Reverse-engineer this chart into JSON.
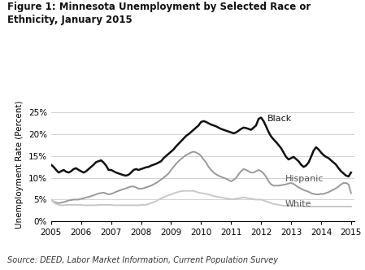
{
  "title_line1": "Figure 1: Minnesota Unemployment by Selected Race or",
  "title_line2": "Ethnicity, January 2015",
  "ylabel": "Unemployment Rate (Percent)",
  "source": "Source: DEED, Labor Market Information, Current Population Survey",
  "ylim": [
    0,
    0.26
  ],
  "yticks": [
    0.0,
    0.05,
    0.1,
    0.15,
    0.2,
    0.25
  ],
  "ytick_labels": [
    "0%",
    "5%",
    "10%",
    "15%",
    "20%",
    "25%"
  ],
  "xlim": [
    2005.0,
    2015.1
  ],
  "xticks": [
    2005,
    2006,
    2007,
    2008,
    2009,
    2010,
    2011,
    2012,
    2013,
    2014,
    2015
  ],
  "black_color": "#111111",
  "hispanic_color": "#999999",
  "white_color": "#c8c8c8",
  "background_color": "#ffffff",
  "grid_color": "#cccccc",
  "black_data": {
    "x": [
      2005.0,
      2005.083,
      2005.167,
      2005.25,
      2005.333,
      2005.417,
      2005.5,
      2005.583,
      2005.667,
      2005.75,
      2005.833,
      2005.917,
      2006.0,
      2006.083,
      2006.167,
      2006.25,
      2006.333,
      2006.417,
      2006.5,
      2006.583,
      2006.667,
      2006.75,
      2006.833,
      2006.917,
      2007.0,
      2007.083,
      2007.167,
      2007.25,
      2007.333,
      2007.417,
      2007.5,
      2007.583,
      2007.667,
      2007.75,
      2007.833,
      2007.917,
      2008.0,
      2008.083,
      2008.167,
      2008.25,
      2008.333,
      2008.417,
      2008.5,
      2008.583,
      2008.667,
      2008.75,
      2008.833,
      2008.917,
      2009.0,
      2009.083,
      2009.167,
      2009.25,
      2009.333,
      2009.417,
      2009.5,
      2009.583,
      2009.667,
      2009.75,
      2009.833,
      2009.917,
      2010.0,
      2010.083,
      2010.167,
      2010.25,
      2010.333,
      2010.417,
      2010.5,
      2010.583,
      2010.667,
      2010.75,
      2010.833,
      2010.917,
      2011.0,
      2011.083,
      2011.167,
      2011.25,
      2011.333,
      2011.417,
      2011.5,
      2011.583,
      2011.667,
      2011.75,
      2011.833,
      2011.917,
      2012.0,
      2012.083,
      2012.167,
      2012.25,
      2012.333,
      2012.417,
      2012.5,
      2012.583,
      2012.667,
      2012.75,
      2012.833,
      2012.917,
      2013.0,
      2013.083,
      2013.167,
      2013.25,
      2013.333,
      2013.417,
      2013.5,
      2013.583,
      2013.667,
      2013.75,
      2013.833,
      2013.917,
      2014.0,
      2014.083,
      2014.167,
      2014.25,
      2014.333,
      2014.417,
      2014.5,
      2014.583,
      2014.667,
      2014.75,
      2014.833,
      2014.917,
      2015.0
    ],
    "y": [
      0.13,
      0.125,
      0.118,
      0.112,
      0.115,
      0.118,
      0.114,
      0.112,
      0.115,
      0.12,
      0.122,
      0.118,
      0.115,
      0.112,
      0.115,
      0.12,
      0.125,
      0.13,
      0.136,
      0.138,
      0.14,
      0.135,
      0.128,
      0.118,
      0.118,
      0.115,
      0.112,
      0.11,
      0.108,
      0.106,
      0.105,
      0.107,
      0.112,
      0.118,
      0.12,
      0.118,
      0.12,
      0.122,
      0.124,
      0.125,
      0.128,
      0.13,
      0.132,
      0.135,
      0.138,
      0.145,
      0.15,
      0.155,
      0.16,
      0.165,
      0.172,
      0.178,
      0.184,
      0.19,
      0.196,
      0.2,
      0.205,
      0.21,
      0.215,
      0.22,
      0.228,
      0.23,
      0.228,
      0.225,
      0.222,
      0.22,
      0.218,
      0.215,
      0.212,
      0.21,
      0.208,
      0.206,
      0.204,
      0.202,
      0.204,
      0.208,
      0.212,
      0.215,
      0.214,
      0.212,
      0.21,
      0.215,
      0.22,
      0.235,
      0.238,
      0.23,
      0.218,
      0.205,
      0.195,
      0.188,
      0.182,
      0.175,
      0.168,
      0.158,
      0.148,
      0.142,
      0.145,
      0.148,
      0.143,
      0.138,
      0.13,
      0.125,
      0.128,
      0.135,
      0.148,
      0.162,
      0.17,
      0.165,
      0.158,
      0.152,
      0.148,
      0.145,
      0.14,
      0.135,
      0.13,
      0.122,
      0.115,
      0.11,
      0.105,
      0.103,
      0.112
    ]
  },
  "hispanic_data": {
    "x": [
      2005.0,
      2005.083,
      2005.167,
      2005.25,
      2005.333,
      2005.417,
      2005.5,
      2005.583,
      2005.667,
      2005.75,
      2005.833,
      2005.917,
      2006.0,
      2006.083,
      2006.167,
      2006.25,
      2006.333,
      2006.417,
      2006.5,
      2006.583,
      2006.667,
      2006.75,
      2006.833,
      2006.917,
      2007.0,
      2007.083,
      2007.167,
      2007.25,
      2007.333,
      2007.417,
      2007.5,
      2007.583,
      2007.667,
      2007.75,
      2007.833,
      2007.917,
      2008.0,
      2008.083,
      2008.167,
      2008.25,
      2008.333,
      2008.417,
      2008.5,
      2008.583,
      2008.667,
      2008.75,
      2008.833,
      2008.917,
      2009.0,
      2009.083,
      2009.167,
      2009.25,
      2009.333,
      2009.417,
      2009.5,
      2009.583,
      2009.667,
      2009.75,
      2009.833,
      2009.917,
      2010.0,
      2010.083,
      2010.167,
      2010.25,
      2010.333,
      2010.417,
      2010.5,
      2010.583,
      2010.667,
      2010.75,
      2010.833,
      2010.917,
      2011.0,
      2011.083,
      2011.167,
      2011.25,
      2011.333,
      2011.417,
      2011.5,
      2011.583,
      2011.667,
      2011.75,
      2011.833,
      2011.917,
      2012.0,
      2012.083,
      2012.167,
      2012.25,
      2012.333,
      2012.417,
      2012.5,
      2012.583,
      2012.667,
      2012.75,
      2012.833,
      2012.917,
      2013.0,
      2013.083,
      2013.167,
      2013.25,
      2013.333,
      2013.417,
      2013.5,
      2013.583,
      2013.667,
      2013.75,
      2013.833,
      2013.917,
      2014.0,
      2014.083,
      2014.167,
      2014.25,
      2014.333,
      2014.417,
      2014.5,
      2014.583,
      2014.667,
      2014.75,
      2014.833,
      2014.917,
      2015.0
    ],
    "y": [
      0.05,
      0.045,
      0.043,
      0.042,
      0.043,
      0.044,
      0.046,
      0.048,
      0.049,
      0.05,
      0.05,
      0.05,
      0.052,
      0.053,
      0.055,
      0.056,
      0.058,
      0.06,
      0.062,
      0.064,
      0.065,
      0.066,
      0.064,
      0.062,
      0.063,
      0.065,
      0.068,
      0.07,
      0.072,
      0.074,
      0.076,
      0.078,
      0.08,
      0.08,
      0.078,
      0.075,
      0.075,
      0.076,
      0.078,
      0.08,
      0.082,
      0.085,
      0.088,
      0.092,
      0.096,
      0.1,
      0.105,
      0.11,
      0.118,
      0.125,
      0.132,
      0.138,
      0.143,
      0.148,
      0.152,
      0.155,
      0.158,
      0.16,
      0.158,
      0.155,
      0.15,
      0.142,
      0.135,
      0.125,
      0.118,
      0.112,
      0.108,
      0.105,
      0.102,
      0.1,
      0.098,
      0.095,
      0.092,
      0.095,
      0.1,
      0.108,
      0.115,
      0.12,
      0.118,
      0.115,
      0.112,
      0.112,
      0.115,
      0.118,
      0.115,
      0.11,
      0.102,
      0.092,
      0.085,
      0.082,
      0.082,
      0.082,
      0.083,
      0.084,
      0.085,
      0.087,
      0.088,
      0.086,
      0.082,
      0.078,
      0.075,
      0.072,
      0.07,
      0.068,
      0.065,
      0.063,
      0.062,
      0.062,
      0.063,
      0.063,
      0.065,
      0.067,
      0.07,
      0.073,
      0.076,
      0.08,
      0.085,
      0.088,
      0.088,
      0.085,
      0.065
    ]
  },
  "white_data": {
    "x": [
      2005.0,
      2005.083,
      2005.167,
      2005.25,
      2005.333,
      2005.417,
      2005.5,
      2005.583,
      2005.667,
      2005.75,
      2005.833,
      2005.917,
      2006.0,
      2006.083,
      2006.167,
      2006.25,
      2006.333,
      2006.417,
      2006.5,
      2006.583,
      2006.667,
      2006.75,
      2006.833,
      2006.917,
      2007.0,
      2007.083,
      2007.167,
      2007.25,
      2007.333,
      2007.417,
      2007.5,
      2007.583,
      2007.667,
      2007.75,
      2007.833,
      2007.917,
      2008.0,
      2008.083,
      2008.167,
      2008.25,
      2008.333,
      2008.417,
      2008.5,
      2008.583,
      2008.667,
      2008.75,
      2008.833,
      2008.917,
      2009.0,
      2009.083,
      2009.167,
      2009.25,
      2009.333,
      2009.417,
      2009.5,
      2009.583,
      2009.667,
      2009.75,
      2009.833,
      2009.917,
      2010.0,
      2010.083,
      2010.167,
      2010.25,
      2010.333,
      2010.417,
      2010.5,
      2010.583,
      2010.667,
      2010.75,
      2010.833,
      2010.917,
      2011.0,
      2011.083,
      2011.167,
      2011.25,
      2011.333,
      2011.417,
      2011.5,
      2011.583,
      2011.667,
      2011.75,
      2011.833,
      2011.917,
      2012.0,
      2012.083,
      2012.167,
      2012.25,
      2012.333,
      2012.417,
      2012.5,
      2012.583,
      2012.667,
      2012.75,
      2012.833,
      2012.917,
      2013.0,
      2013.083,
      2013.167,
      2013.25,
      2013.333,
      2013.417,
      2013.5,
      2013.583,
      2013.667,
      2013.75,
      2013.833,
      2013.917,
      2014.0,
      2014.083,
      2014.167,
      2014.25,
      2014.333,
      2014.417,
      2014.5,
      2014.583,
      2014.667,
      2014.75,
      2014.833,
      2014.917,
      2015.0
    ],
    "y": [
      0.05,
      0.044,
      0.04,
      0.038,
      0.037,
      0.037,
      0.038,
      0.038,
      0.038,
      0.038,
      0.038,
      0.038,
      0.038,
      0.037,
      0.037,
      0.037,
      0.037,
      0.037,
      0.037,
      0.038,
      0.038,
      0.038,
      0.038,
      0.038,
      0.038,
      0.037,
      0.037,
      0.037,
      0.037,
      0.037,
      0.037,
      0.037,
      0.037,
      0.037,
      0.037,
      0.037,
      0.038,
      0.038,
      0.038,
      0.04,
      0.042,
      0.044,
      0.046,
      0.05,
      0.053,
      0.055,
      0.058,
      0.06,
      0.062,
      0.064,
      0.066,
      0.068,
      0.069,
      0.07,
      0.07,
      0.07,
      0.07,
      0.07,
      0.068,
      0.066,
      0.065,
      0.064,
      0.063,
      0.062,
      0.06,
      0.058,
      0.057,
      0.056,
      0.055,
      0.054,
      0.053,
      0.052,
      0.051,
      0.051,
      0.052,
      0.053,
      0.054,
      0.055,
      0.054,
      0.053,
      0.052,
      0.051,
      0.05,
      0.05,
      0.05,
      0.048,
      0.046,
      0.044,
      0.042,
      0.04,
      0.039,
      0.038,
      0.037,
      0.036,
      0.036,
      0.036,
      0.036,
      0.036,
      0.035,
      0.035,
      0.035,
      0.034,
      0.034,
      0.034,
      0.034,
      0.034,
      0.034,
      0.034,
      0.034,
      0.034,
      0.034,
      0.034,
      0.034,
      0.034,
      0.034,
      0.034,
      0.034,
      0.034,
      0.034,
      0.034,
      0.034
    ]
  },
  "label_black": "Black",
  "label_hispanic": "Hispanic",
  "label_white": "White",
  "black_lw": 1.8,
  "hispanic_lw": 1.4,
  "white_lw": 1.4
}
